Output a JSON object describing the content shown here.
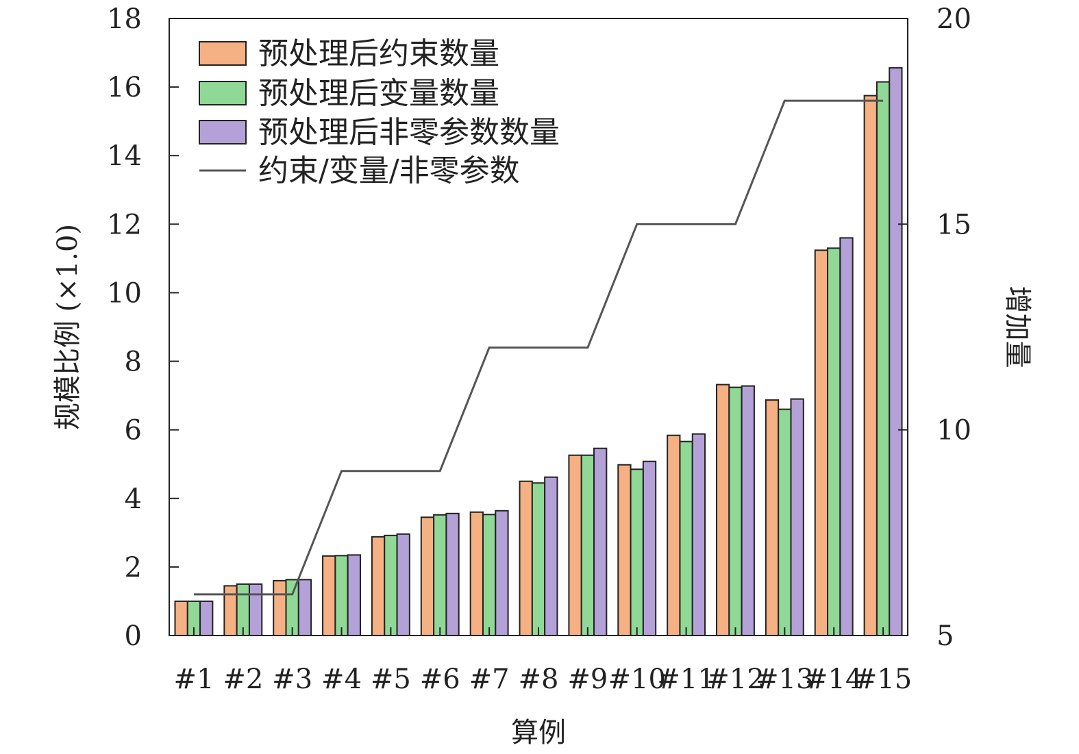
{
  "chart_data": {
    "type": "bar",
    "xlabel": "算例",
    "ylabel": "规模比例 (×1.0)",
    "y2label": "增加量",
    "ylim": [
      0,
      18
    ],
    "y2lim": [
      5,
      20
    ],
    "yticks": [
      0,
      2,
      4,
      6,
      8,
      10,
      12,
      14,
      16,
      18
    ],
    "y2ticks": [
      5,
      10,
      15,
      20
    ],
    "grid": false,
    "legend_position": "top-left",
    "categories": [
      "#1",
      "#2",
      "#3",
      "#4",
      "#5",
      "#6",
      "#7",
      "#8",
      "#9",
      "#10",
      "#11",
      "#12",
      "#13",
      "#14",
      "#15"
    ],
    "series": [
      {
        "name": "预处理后约束数量",
        "color": "#F5B183",
        "axis": "left",
        "values": [
          1.0,
          1.45,
          1.6,
          2.32,
          2.88,
          3.45,
          3.6,
          4.5,
          5.26,
          4.98,
          5.84,
          7.32,
          6.87,
          11.24,
          15.75
        ]
      },
      {
        "name": "预处理后变量数量",
        "color": "#8FD895",
        "axis": "left",
        "values": [
          1.0,
          1.5,
          1.63,
          2.33,
          2.92,
          3.52,
          3.53,
          4.45,
          5.26,
          4.85,
          5.66,
          7.24,
          6.6,
          11.3,
          16.15
        ]
      },
      {
        "name": "预处理后非零参数数量",
        "color": "#B3A1D8",
        "axis": "left",
        "values": [
          1.0,
          1.5,
          1.63,
          2.35,
          2.96,
          3.56,
          3.64,
          4.62,
          5.46,
          5.08,
          5.88,
          7.28,
          6.9,
          11.6,
          16.56
        ]
      },
      {
        "name": "约束/变量/非零参数",
        "color": "#555555",
        "axis": "right",
        "type": "line",
        "values": [
          6,
          6,
          6,
          9,
          9,
          9,
          12,
          12,
          12,
          15,
          15,
          15,
          18,
          18,
          18
        ]
      }
    ]
  }
}
